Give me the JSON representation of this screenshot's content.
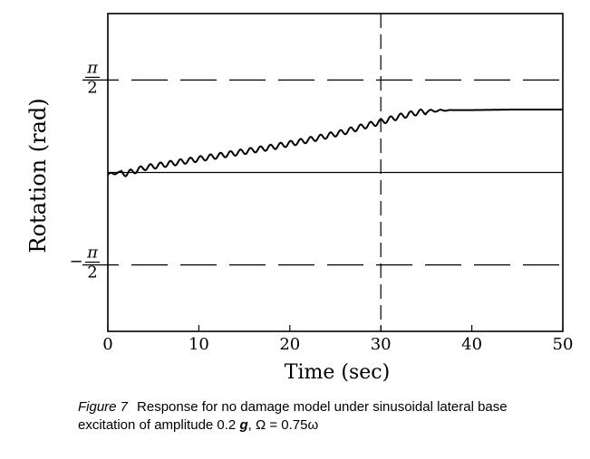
{
  "chart_data": {
    "type": "line",
    "xlabel": "Time (sec)",
    "ylabel": "Rotation (rad)",
    "xlim": [
      0,
      50
    ],
    "ylim": [
      -2.7,
      2.7
    ],
    "x_ticks": [
      {
        "value": 0,
        "label": "0"
      },
      {
        "value": 10,
        "label": "10"
      },
      {
        "value": 20,
        "label": "20"
      },
      {
        "value": 30,
        "label": "30"
      },
      {
        "value": 40,
        "label": "40"
      },
      {
        "value": 50,
        "label": "50"
      }
    ],
    "y_ticks": [
      {
        "value": 1.5708,
        "num": "π",
        "den": "2",
        "sign": ""
      },
      {
        "value": -1.5708,
        "num": "π",
        "den": "2",
        "sign": "−"
      }
    ],
    "reference_lines": {
      "horizontal_dashed": [
        1.5708,
        -1.5708
      ],
      "horizontal_solid": [
        0
      ],
      "vertical_dashed": [
        30
      ]
    },
    "series": [
      {
        "color": "#000000",
        "oscillation_amplitude": 0.045,
        "oscillation_period": 1.1,
        "x": [
          0,
          1,
          2,
          4,
          6,
          8,
          10,
          12,
          14,
          16,
          18,
          20,
          22,
          24,
          26,
          28,
          30,
          32,
          34,
          36,
          38,
          40,
          45,
          50
        ],
        "y": [
          -0.04,
          0.0,
          -0.02,
          0.08,
          0.13,
          0.18,
          0.23,
          0.28,
          0.33,
          0.38,
          0.43,
          0.49,
          0.55,
          0.62,
          0.69,
          0.78,
          0.86,
          0.95,
          1.02,
          1.05,
          1.06,
          1.06,
          1.07,
          1.07
        ]
      }
    ]
  },
  "caption": {
    "label": "Figure 7",
    "text_before": "Response for no damage model under sinusoidal lateral base excitation of amplitude 0.2 ",
    "g": "g",
    "text_after": ", Ω = 0.75ω"
  }
}
